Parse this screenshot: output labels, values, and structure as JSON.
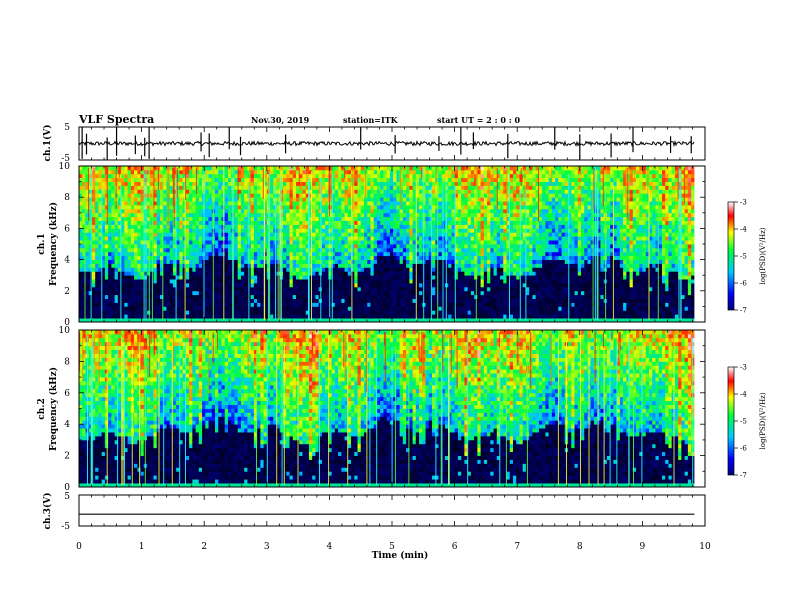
{
  "header": {
    "title": "VLF Spectra",
    "date": "Nov.30, 2019",
    "station": "station=ITK",
    "start": "start  UT =   2  : 0   : 0"
  },
  "chart_data": [
    {
      "type": "line",
      "panel": "ch1_waveform",
      "ylabel": "ch.1(V)",
      "ylim": [
        -5,
        5
      ],
      "yticks": [
        "5",
        "-5"
      ],
      "xlim": [
        0,
        10
      ],
      "baseline": 0,
      "spike_times_min": [
        0.05,
        0.12,
        0.45,
        0.6,
        0.9,
        1.05,
        1.12,
        1.95,
        2.08,
        2.4,
        2.58,
        3.3,
        4.5,
        5.05,
        5.75,
        6.1,
        6.3,
        6.85,
        7.6,
        8.0,
        8.5,
        8.85,
        9.45,
        9.78
      ]
    },
    {
      "type": "heatmap",
      "panel": "ch1_spectrogram",
      "ylabel": "ch.1\nFrequency (kHz)",
      "ylim": [
        0,
        10
      ],
      "yticks": [
        "0",
        "2",
        "4",
        "6",
        "8",
        "10"
      ],
      "xlim": [
        0,
        10
      ],
      "colorbar": {
        "label": "log(PSD)(V²/Hz)",
        "range": [
          -7,
          -3
        ],
        "ticks": [
          "-3",
          "-4",
          "-5",
          "-6",
          "-7"
        ]
      },
      "data_end_min": 9.83
    },
    {
      "type": "heatmap",
      "panel": "ch2_spectrogram",
      "ylabel": "ch.2\nFrequency (kHz)",
      "ylim": [
        0,
        10
      ],
      "yticks": [
        "0",
        "2",
        "4",
        "6",
        "8",
        "10"
      ],
      "xlim": [
        0,
        10
      ],
      "colorbar": {
        "label": "log(PSD)(V²/Hz)",
        "range": [
          -7,
          -3
        ],
        "ticks": [
          "-3",
          "-4",
          "-5",
          "-6",
          "-7"
        ]
      },
      "data_end_min": 9.83
    },
    {
      "type": "line",
      "panel": "ch3_waveform",
      "ylabel": "ch.3(V)",
      "ylim": [
        -5,
        5
      ],
      "yticks": [
        "5",
        "-5"
      ],
      "xlim": [
        0,
        10
      ],
      "baseline": -1.2,
      "xlabel": "Time  (min)",
      "xticks": [
        "0",
        "1",
        "2",
        "3",
        "4",
        "5",
        "6",
        "7",
        "8",
        "9",
        "10"
      ]
    }
  ]
}
